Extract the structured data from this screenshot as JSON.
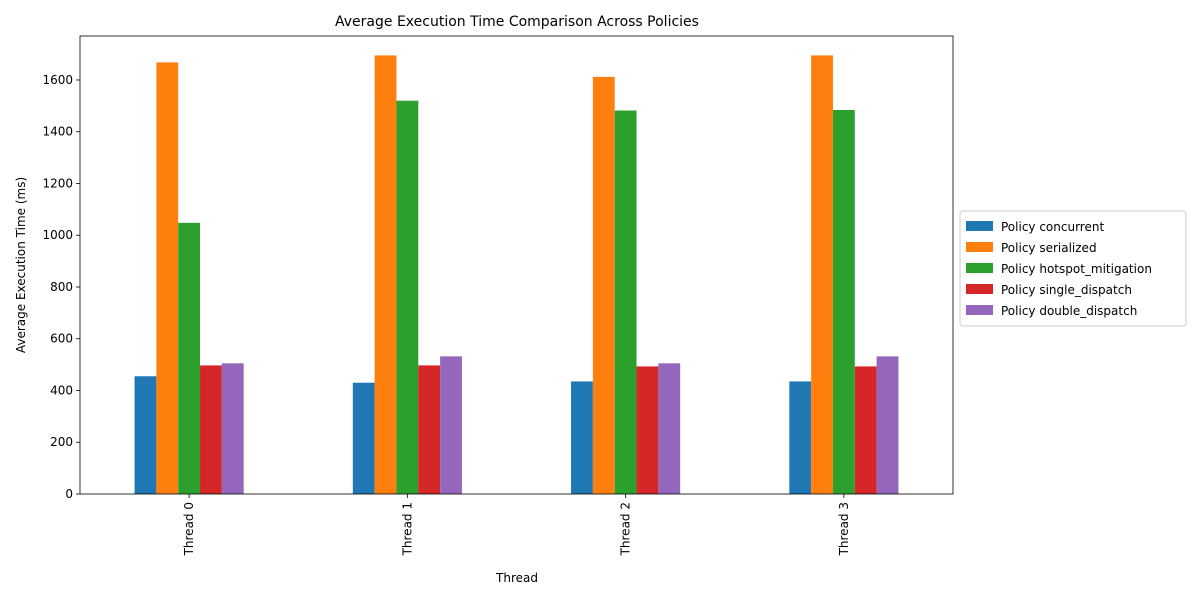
{
  "chart_data": {
    "type": "bar",
    "title": "Average Execution Time Comparison Across Policies",
    "xlabel": "Thread",
    "ylabel": "Average Execution Time (ms)",
    "categories": [
      "Thread 0",
      "Thread 1",
      "Thread 2",
      "Thread 3"
    ],
    "ylim": [
      0,
      1770
    ],
    "yticks": [
      0,
      200,
      400,
      600,
      800,
      1000,
      1200,
      1400,
      1600
    ],
    "grid": false,
    "legend_position": "right",
    "series": [
      {
        "name": "Policy concurrent",
        "color": "#1f77b4",
        "values": [
          455,
          430,
          435,
          435
        ]
      },
      {
        "name": "Policy serialized",
        "color": "#ff7f0e",
        "values": [
          1668,
          1695,
          1612,
          1695
        ]
      },
      {
        "name": "Policy hotspot_mitigation",
        "color": "#2ca02c",
        "values": [
          1048,
          1520,
          1482,
          1484
        ]
      },
      {
        "name": "Policy single_dispatch",
        "color": "#d62728",
        "values": [
          497,
          497,
          493,
          493
        ]
      },
      {
        "name": "Policy double_dispatch",
        "color": "#9467bd",
        "values": [
          505,
          532,
          505,
          532
        ]
      }
    ]
  }
}
